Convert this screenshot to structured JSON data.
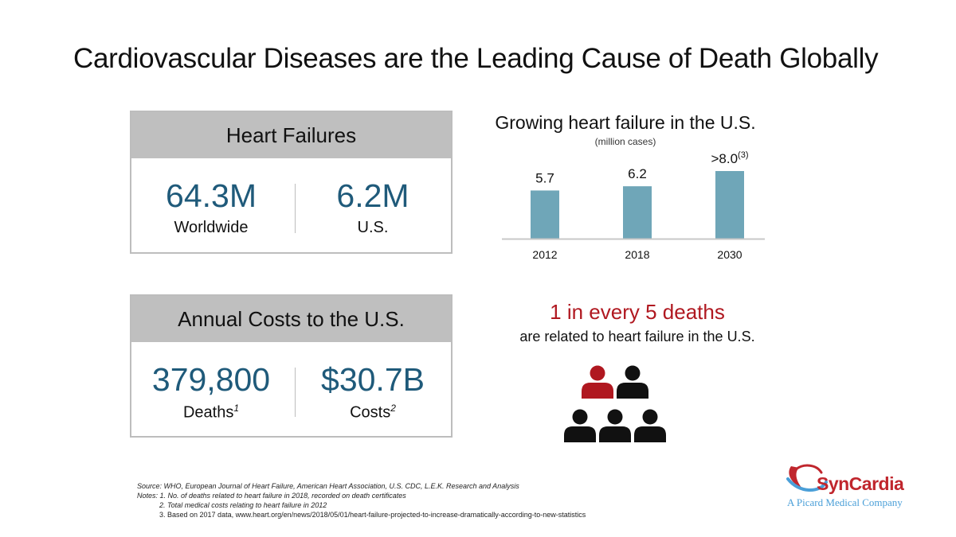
{
  "title": "Cardiovascular Diseases are the Leading Cause of Death Globally",
  "heart_failures": {
    "header": "Heart Failures",
    "left_value": "64.3M",
    "left_label": "Worldwide",
    "right_value": "6.2M",
    "right_label": "U.S."
  },
  "annual_costs": {
    "header": "Annual Costs to the U.S.",
    "left_value": "379,800",
    "left_label": "Deaths",
    "left_sup": "1",
    "right_value": "$30.7B",
    "right_label": "Costs",
    "right_sup": "2"
  },
  "chart_data": {
    "type": "bar",
    "title": "Growing heart failure in the U.S.",
    "subtitle": "(million cases)",
    "categories": [
      "2012",
      "2018",
      "2030"
    ],
    "values": [
      5.7,
      6.2,
      8.0
    ],
    "data_labels": [
      "5.7",
      "6.2",
      ">8.0"
    ],
    "label_superscripts": [
      "",
      "",
      "(3)"
    ],
    "ylim": [
      0,
      8.0
    ],
    "color": "#6fa6b8",
    "xlabel": "",
    "ylabel": "",
    "grid": false
  },
  "deaths": {
    "headline": "1 in every 5 deaths",
    "subline": "are related to heart failure in the U.S.",
    "total_people": 5,
    "highlighted_people": 1,
    "highlight_color": "#b01820",
    "normal_color": "#111111"
  },
  "notes": {
    "source": "Source: WHO, European Journal of Heart Failure, American Heart Association, U.S. CDC, L.E.K. Research and Analysis",
    "note1": "Notes: 1. No. of deaths related to heart failure in 2018, recorded on death certificates",
    "note2": "2. Total medical costs relating to heart failure in 2012",
    "note3": "3. Based on 2017 data, www.heart.org/en/news/2018/05/01/heart-failure-projected-to-increase-dramatically-according-to-new-statistics"
  },
  "logo": {
    "name": "SynCardia",
    "tagline": "A Picard Medical Company",
    "primary_color": "#c0262d",
    "secondary_color": "#4a9fd8"
  }
}
